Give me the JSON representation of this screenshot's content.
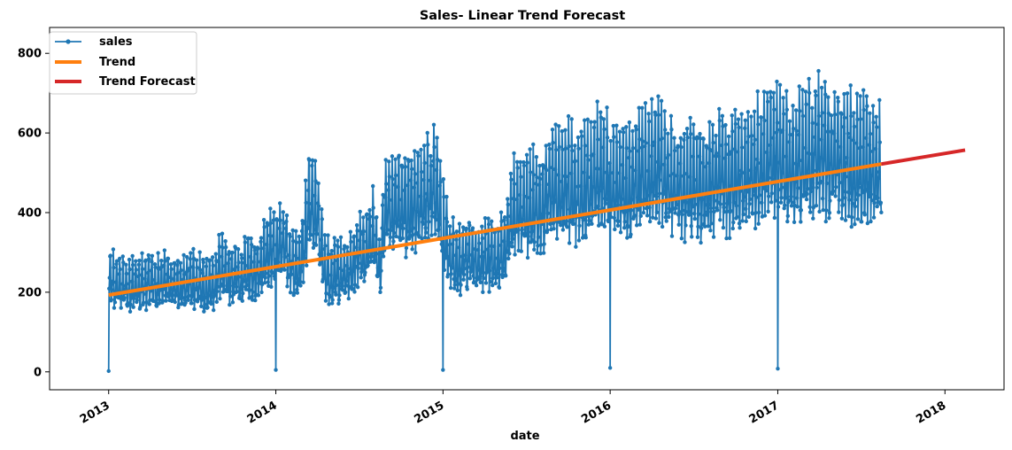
{
  "chart_data": {
    "type": "line",
    "title": "Sales- Linear Trend Forecast",
    "xlabel": "date",
    "ylabel": "",
    "xlim": [
      "2012-08-25",
      "2018-05-10"
    ],
    "ylim": [
      -45,
      865
    ],
    "x_ticks": [
      "2013",
      "2014",
      "2015",
      "2016",
      "2017",
      "2018"
    ],
    "y_ticks": [
      0,
      200,
      400,
      600,
      800
    ],
    "grid": false,
    "legend": {
      "position": "top-left",
      "entries": [
        "sales",
        "Trend",
        "Trend Forecast"
      ]
    },
    "colors": {
      "sales": "#1f77b4",
      "trend": "#ff7f0e",
      "forecast": "#d62728"
    },
    "series": [
      {
        "name": "sales",
        "style": "line-with-markers",
        "x_start": "2013-01-01",
        "x_end": "2017-08-15",
        "drops_to_near_zero": [
          "2013-01-01",
          "2014-01-01",
          "2015-01-01",
          "2016-01-01",
          "2017-01-01"
        ],
        "points": [
          [
            "2013-01-01",
            2
          ],
          [
            "2013-01-15",
            215
          ],
          [
            "2013-02-01",
            210
          ],
          [
            "2013-02-15",
            200
          ],
          [
            "2013-03-01",
            215
          ],
          [
            "2013-03-15",
            210
          ],
          [
            "2013-04-01",
            225
          ],
          [
            "2013-04-15",
            205
          ],
          [
            "2013-05-01",
            220
          ],
          [
            "2013-05-15",
            215
          ],
          [
            "2013-06-01",
            210
          ],
          [
            "2013-06-15",
            205
          ],
          [
            "2013-07-01",
            225
          ],
          [
            "2013-07-15",
            215
          ],
          [
            "2013-08-01",
            210
          ],
          [
            "2013-08-15",
            205
          ],
          [
            "2013-09-01",
            250
          ],
          [
            "2013-09-15",
            230
          ],
          [
            "2013-10-01",
            240
          ],
          [
            "2013-10-15",
            225
          ],
          [
            "2013-11-01",
            250
          ],
          [
            "2013-11-15",
            235
          ],
          [
            "2013-12-01",
            260
          ],
          [
            "2013-12-15",
            280
          ],
          [
            "2014-01-01",
            5
          ],
          [
            "2014-01-15",
            320
          ],
          [
            "2014-02-01",
            270
          ],
          [
            "2014-02-15",
            250
          ],
          [
            "2014-03-01",
            300
          ],
          [
            "2014-03-15",
            400
          ],
          [
            "2014-04-01",
            380
          ],
          [
            "2014-04-15",
            260
          ],
          [
            "2014-05-01",
            230
          ],
          [
            "2014-05-15",
            240
          ],
          [
            "2014-06-01",
            235
          ],
          [
            "2014-06-15",
            250
          ],
          [
            "2014-07-01",
            300
          ],
          [
            "2014-07-15",
            290
          ],
          [
            "2014-08-01",
            340
          ],
          [
            "2014-08-15",
            250
          ],
          [
            "2014-09-01",
            420
          ],
          [
            "2014-09-15",
            400
          ],
          [
            "2014-10-01",
            410
          ],
          [
            "2014-10-15",
            395
          ],
          [
            "2014-11-01",
            420
          ],
          [
            "2014-11-15",
            410
          ],
          [
            "2014-12-01",
            430
          ],
          [
            "2014-12-15",
            440
          ],
          [
            "2015-01-01",
            5
          ],
          [
            "2015-01-15",
            290
          ],
          [
            "2015-02-01",
            260
          ],
          [
            "2015-02-15",
            270
          ],
          [
            "2015-03-01",
            280
          ],
          [
            "2015-03-15",
            270
          ],
          [
            "2015-04-01",
            280
          ],
          [
            "2015-04-15",
            275
          ],
          [
            "2015-05-01",
            270
          ],
          [
            "2015-05-15",
            290
          ],
          [
            "2015-06-01",
            380
          ],
          [
            "2015-06-15",
            400
          ],
          [
            "2015-07-01",
            390
          ],
          [
            "2015-07-15",
            400
          ],
          [
            "2015-08-01",
            410
          ],
          [
            "2015-08-15",
            420
          ],
          [
            "2015-09-01",
            440
          ],
          [
            "2015-09-15",
            430
          ],
          [
            "2015-10-01",
            450
          ],
          [
            "2015-10-15",
            440
          ],
          [
            "2015-11-01",
            440
          ],
          [
            "2015-11-15",
            450
          ],
          [
            "2015-12-01",
            470
          ],
          [
            "2015-12-15",
            490
          ],
          [
            "2016-01-01",
            10
          ],
          [
            "2016-01-15",
            450
          ],
          [
            "2016-02-01",
            460
          ],
          [
            "2016-02-15",
            450
          ],
          [
            "2016-03-01",
            470
          ],
          [
            "2016-03-15",
            480
          ],
          [
            "2016-04-01",
            480
          ],
          [
            "2016-04-15",
            500
          ],
          [
            "2016-05-01",
            470
          ],
          [
            "2016-05-15",
            450
          ],
          [
            "2016-06-01",
            450
          ],
          [
            "2016-06-15",
            455
          ],
          [
            "2016-07-01",
            450
          ],
          [
            "2016-07-15",
            445
          ],
          [
            "2016-08-01",
            455
          ],
          [
            "2016-08-15",
            460
          ],
          [
            "2016-09-01",
            470
          ],
          [
            "2016-09-15",
            460
          ],
          [
            "2016-10-01",
            470
          ],
          [
            "2016-10-15",
            475
          ],
          [
            "2016-11-01",
            480
          ],
          [
            "2016-11-15",
            490
          ],
          [
            "2016-12-01",
            510
          ],
          [
            "2016-12-15",
            530
          ],
          [
            "2017-01-01",
            8
          ],
          [
            "2017-01-15",
            500
          ],
          [
            "2017-02-01",
            490
          ],
          [
            "2017-02-15",
            500
          ],
          [
            "2017-03-01",
            510
          ],
          [
            "2017-03-15",
            520
          ],
          [
            "2017-04-01",
            530
          ],
          [
            "2017-04-15",
            520
          ],
          [
            "2017-05-01",
            510
          ],
          [
            "2017-05-15",
            520
          ],
          [
            "2017-06-01",
            505
          ],
          [
            "2017-06-15",
            510
          ],
          [
            "2017-07-01",
            500
          ],
          [
            "2017-07-15",
            500
          ],
          [
            "2017-08-01",
            495
          ],
          [
            "2017-08-15",
            470
          ]
        ]
      },
      {
        "name": "Trend",
        "x": [
          "2013-01-01",
          "2017-08-15"
        ],
        "y": [
          193,
          522
        ]
      },
      {
        "name": "Trend Forecast",
        "x": [
          "2017-08-15",
          "2018-02-14"
        ],
        "y": [
          522,
          557
        ]
      }
    ]
  }
}
